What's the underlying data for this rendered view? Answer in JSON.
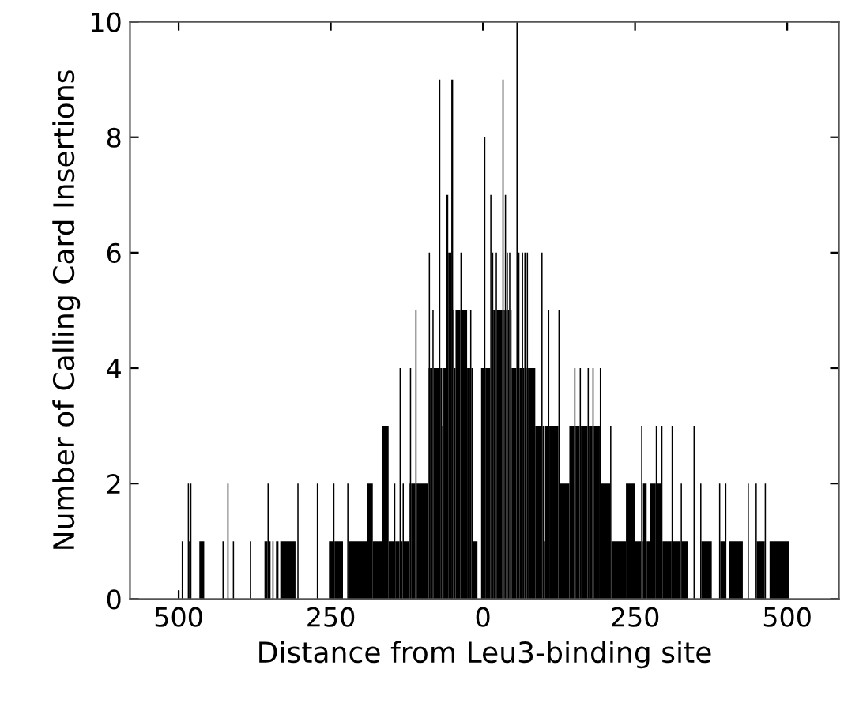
{
  "chart_data": {
    "type": "histogram",
    "xlabel": "Distance from Leu3-binding site",
    "ylabel": "Number of Calling Card Insertions",
    "color": "#000000",
    "bins": [
      -495,
      -493,
      -485,
      -483,
      -481,
      -479,
      -466,
      -458,
      -428,
      -426,
      -420,
      -418,
      -411,
      -409,
      -383,
      -381,
      -359,
      -354,
      -352,
      -349,
      -346,
      -344,
      -340,
      -336,
      -333,
      -308,
      -305,
      -303,
      -273,
      -271,
      -253,
      -246,
      -244,
      -230,
      -223,
      -221,
      -190,
      -181,
      -166,
      -155,
      -146,
      -144,
      -137,
      -135,
      -132,
      -130,
      -122,
      -120,
      -118,
      -111,
      -109,
      -91,
      -89,
      -87,
      -83,
      -81,
      -72,
      -70,
      -67,
      -65,
      -60,
      -57,
      -52,
      -49,
      -47,
      -45,
      -37,
      -35,
      -26,
      -21,
      -19,
      -17,
      -9,
      -3,
      2,
      4,
      12,
      14,
      15,
      17,
      21,
      23,
      32,
      34,
      36,
      38,
      39,
      41,
      43,
      45,
      47,
      55,
      57,
      58,
      60,
      64,
      66,
      68,
      70,
      72,
      74,
      86,
      96,
      98,
      100,
      102,
      107,
      109,
      124,
      126,
      142,
      150,
      152,
      159,
      161,
      172,
      174,
      180,
      182,
      192,
      194,
      209,
      211,
      235,
      250,
      260,
      262,
      263,
      269,
      275,
      284,
      286,
      293,
      295,
      310,
      312,
      325,
      327,
      337,
      346,
      348,
      357,
      359,
      376,
      388,
      390,
      398,
      400,
      405,
      427,
      435,
      437,
      448,
      450,
      463,
      465,
      471,
      503
    ],
    "values": [
      1,
      0,
      2,
      1,
      2,
      0,
      1,
      0,
      1,
      0,
      2,
      0,
      1,
      0,
      1,
      0,
      1,
      2,
      1,
      0,
      1,
      0,
      1,
      0,
      1,
      0,
      2,
      0,
      2,
      0,
      1,
      2,
      1,
      0,
      2,
      1,
      2,
      1,
      3,
      1,
      2,
      1,
      4,
      1,
      2,
      1,
      2,
      4,
      2,
      5,
      2,
      4,
      6,
      4,
      5,
      4,
      9,
      4,
      3,
      4,
      7,
      6,
      9,
      5,
      4,
      5,
      6,
      5,
      4,
      5,
      4,
      1,
      0,
      4,
      8,
      4,
      7,
      5,
      6,
      5,
      6,
      5,
      9,
      5,
      7,
      5,
      6,
      5,
      6,
      5,
      4,
      10,
      4,
      6,
      4,
      6,
      4,
      6,
      4,
      6,
      4,
      3,
      6,
      3,
      1,
      3,
      5,
      3,
      5,
      2,
      3,
      4,
      3,
      4,
      3,
      4,
      3,
      4,
      3,
      4,
      2,
      3,
      1,
      2,
      1,
      3,
      1,
      2,
      1,
      2,
      3,
      2,
      3,
      1,
      3,
      1,
      2,
      1,
      0,
      3,
      0,
      2,
      1,
      0,
      2,
      1,
      2,
      0,
      1,
      0,
      2,
      0,
      2,
      1,
      2,
      0,
      1
    ],
    "xlim": [
      -580,
      585
    ],
    "xticks": [
      {
        "value": -500,
        "label": "500"
      },
      {
        "value": -250,
        "label": "250"
      },
      0,
      250,
      500
    ],
    "ylim": [
      0,
      10
    ],
    "yticks": [
      0,
      2,
      4,
      6,
      8,
      10
    ],
    "grid": false
  }
}
